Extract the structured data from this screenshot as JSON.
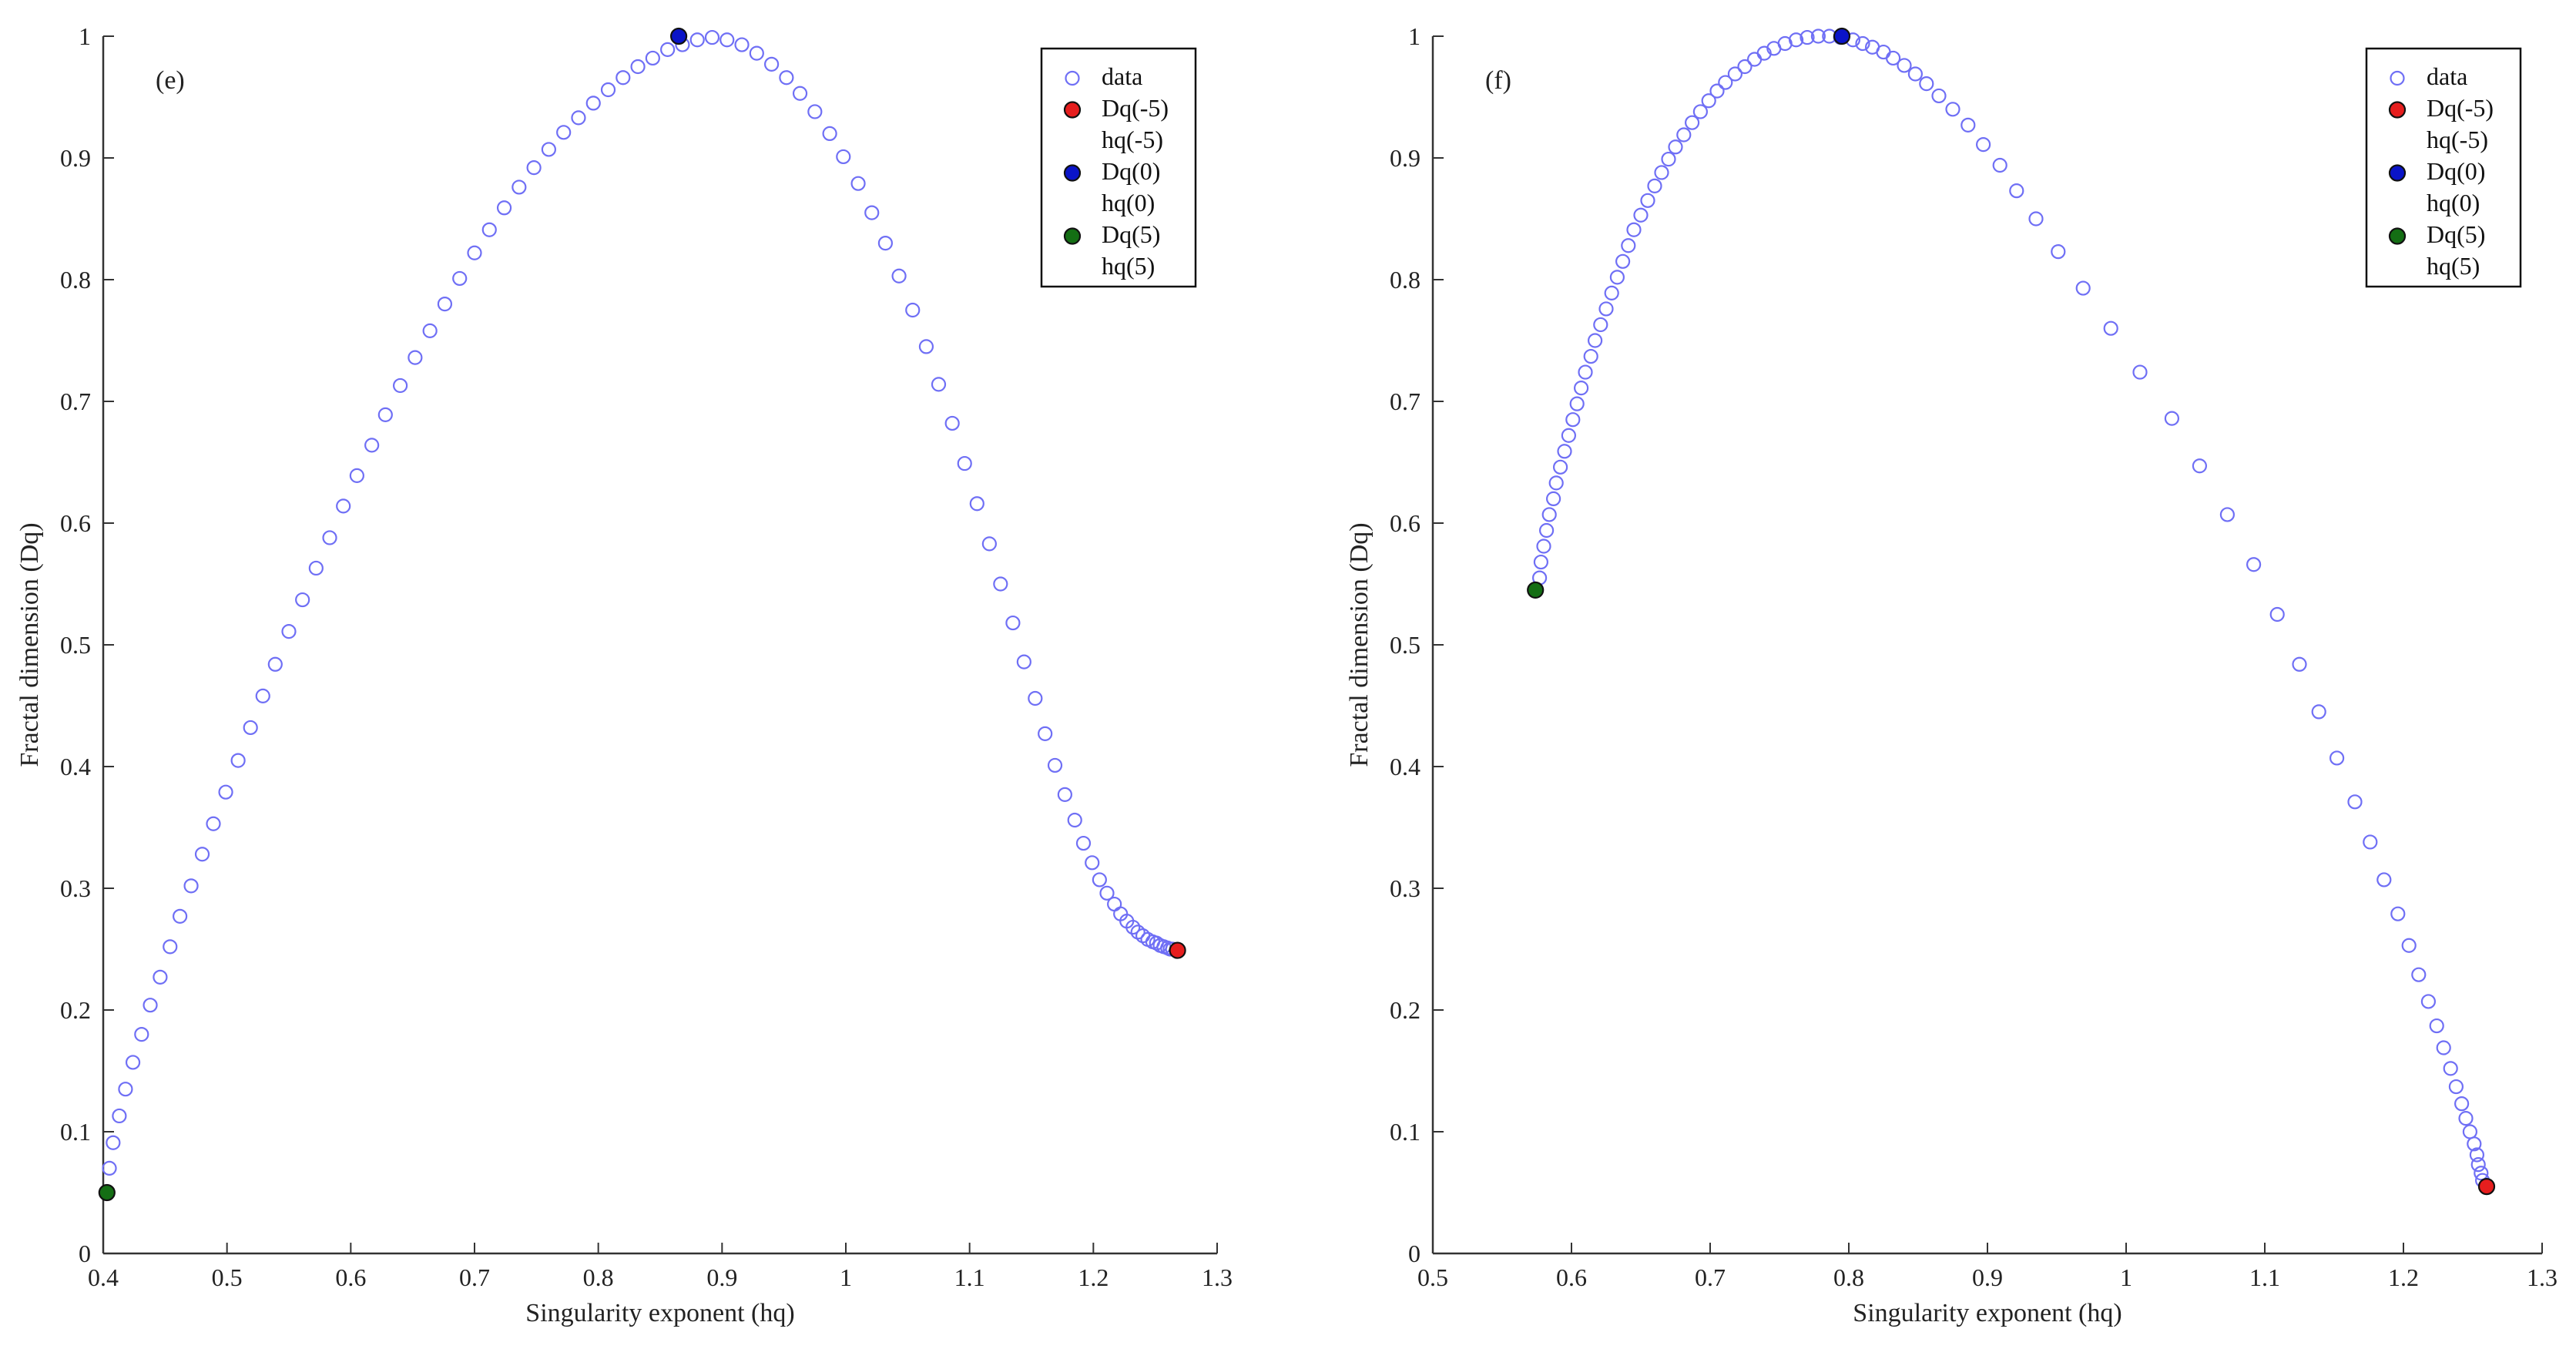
{
  "chart_data": [
    {
      "type": "scatter",
      "panel_label": "(e)",
      "xlabel": "Singularity exponent (hq)",
      "ylabel": "Fractal dimension (Dq)",
      "xlim": [
        0.4,
        1.3
      ],
      "ylim": [
        0,
        1
      ],
      "xticks": [
        "0.4",
        "0.5",
        "0.6",
        "0.7",
        "0.8",
        "0.9",
        "1",
        "1.1",
        "1.2",
        "1.3"
      ],
      "yticks": [
        "0",
        "0.1",
        "0.2",
        "0.3",
        "0.4",
        "0.5",
        "0.6",
        "0.7",
        "0.8",
        "0.9",
        "1"
      ],
      "legend": {
        "position": "top-right",
        "entries": [
          {
            "label_lines": [
              "data"
            ],
            "marker": "open-circle",
            "color": "#6f6ff5"
          },
          {
            "label_lines": [
              "Dq(-5)",
              "hq(-5)"
            ],
            "marker": "filled-circle",
            "color": "#e61e1e"
          },
          {
            "label_lines": [
              "Dq(0)",
              "hq(0)"
            ],
            "marker": "filled-circle",
            "color": "#0a14c8"
          },
          {
            "label_lines": [
              "Dq(5)",
              "hq(5)"
            ],
            "marker": "filled-circle",
            "color": "#146e14"
          }
        ]
      },
      "series": [
        {
          "name": "data",
          "marker": "open-circle",
          "color": "#6f6ff5",
          "x": [
            0.405,
            0.408,
            0.413,
            0.418,
            0.424,
            0.431,
            0.438,
            0.446,
            0.454,
            0.462,
            0.471,
            0.48,
            0.489,
            0.499,
            0.509,
            0.519,
            0.529,
            0.539,
            0.55,
            0.561,
            0.572,
            0.583,
            0.594,
            0.605,
            0.617,
            0.628,
            0.64,
            0.652,
            0.664,
            0.676,
            0.688,
            0.7,
            0.712,
            0.724,
            0.736,
            0.748,
            0.76,
            0.772,
            0.784,
            0.796,
            0.808,
            0.82,
            0.832,
            0.844,
            0.856,
            0.868,
            0.88,
            0.892,
            0.904,
            0.916,
            0.928,
            0.94,
            0.952,
            0.963,
            0.975,
            0.987,
            0.998,
            1.01,
            1.021,
            1.032,
            1.043,
            1.054,
            1.065,
            1.075,
            1.086,
            1.096,
            1.106,
            1.116,
            1.125,
            1.135,
            1.144,
            1.153,
            1.161,
            1.169,
            1.177,
            1.185,
            1.192,
            1.199,
            1.205,
            1.211,
            1.217,
            1.222,
            1.227,
            1.232,
            1.236,
            1.24,
            1.244,
            1.248,
            1.251,
            1.254,
            1.257,
            1.26,
            1.262,
            1.264
          ],
          "y": [
            0.07,
            0.091,
            0.113,
            0.135,
            0.157,
            0.18,
            0.204,
            0.227,
            0.252,
            0.277,
            0.302,
            0.328,
            0.353,
            0.379,
            0.405,
            0.432,
            0.458,
            0.484,
            0.511,
            0.537,
            0.563,
            0.588,
            0.614,
            0.639,
            0.664,
            0.689,
            0.713,
            0.736,
            0.758,
            0.78,
            0.801,
            0.822,
            0.841,
            0.859,
            0.876,
            0.892,
            0.907,
            0.921,
            0.933,
            0.945,
            0.956,
            0.966,
            0.975,
            0.982,
            0.989,
            0.993,
            0.997,
            0.999,
            0.997,
            0.993,
            0.986,
            0.977,
            0.966,
            0.953,
            0.938,
            0.92,
            0.901,
            0.879,
            0.855,
            0.83,
            0.803,
            0.775,
            0.745,
            0.714,
            0.682,
            0.649,
            0.616,
            0.583,
            0.55,
            0.518,
            0.486,
            0.456,
            0.427,
            0.401,
            0.377,
            0.356,
            0.337,
            0.321,
            0.307,
            0.296,
            0.287,
            0.279,
            0.273,
            0.268,
            0.264,
            0.261,
            0.258,
            0.256,
            0.255,
            0.253,
            0.252,
            0.251,
            0.25,
            0.25
          ]
        },
        {
          "name": "Dq(-5) hq(-5)",
          "marker": "filled-circle",
          "color": "#e61e1e",
          "x": [
            1.268
          ],
          "y": [
            0.249
          ]
        },
        {
          "name": "Dq(0) hq(0)",
          "marker": "filled-circle",
          "color": "#0a14c8",
          "x": [
            0.865
          ],
          "y": [
            1.0
          ]
        },
        {
          "name": "Dq(5) hq(5)",
          "marker": "filled-circle",
          "color": "#146e14",
          "x": [
            0.403
          ],
          "y": [
            0.05
          ]
        }
      ]
    },
    {
      "type": "scatter",
      "panel_label": "(f)",
      "xlabel": "Singularity exponent (hq)",
      "ylabel": "Fractal dimension (Dq)",
      "xlim": [
        0.5,
        1.3
      ],
      "ylim": [
        0,
        1
      ],
      "xticks": [
        "0.5",
        "0.6",
        "0.7",
        "0.8",
        "0.9",
        "1",
        "1.1",
        "1.2",
        "1.3"
      ],
      "yticks": [
        "0",
        "0.1",
        "0.2",
        "0.3",
        "0.4",
        "0.5",
        "0.6",
        "0.7",
        "0.8",
        "0.9",
        "1"
      ],
      "legend": {
        "position": "top-right",
        "entries": [
          {
            "label_lines": [
              "data"
            ],
            "marker": "open-circle",
            "color": "#6f6ff5"
          },
          {
            "label_lines": [
              "Dq(-5)",
              "hq(-5)"
            ],
            "marker": "filled-circle",
            "color": "#e61e1e"
          },
          {
            "label_lines": [
              "Dq(0)",
              "hq(0)"
            ],
            "marker": "filled-circle",
            "color": "#0a14c8"
          },
          {
            "label_lines": [
              "Dq(5)",
              "hq(5)"
            ],
            "marker": "filled-circle",
            "color": "#146e14"
          }
        ]
      },
      "series": [
        {
          "name": "data",
          "marker": "open-circle",
          "color": "#6f6ff5",
          "x": [
            0.577,
            0.578,
            0.58,
            0.582,
            0.584,
            0.587,
            0.589,
            0.592,
            0.595,
            0.598,
            0.601,
            0.604,
            0.607,
            0.61,
            0.614,
            0.617,
            0.621,
            0.625,
            0.629,
            0.633,
            0.637,
            0.641,
            0.645,
            0.65,
            0.655,
            0.66,
            0.665,
            0.67,
            0.675,
            0.681,
            0.687,
            0.693,
            0.699,
            0.705,
            0.711,
            0.718,
            0.725,
            0.732,
            0.739,
            0.746,
            0.754,
            0.762,
            0.77,
            0.778,
            0.786,
            0.794,
            0.803,
            0.81,
            0.817,
            0.825,
            0.832,
            0.84,
            0.848,
            0.856,
            0.865,
            0.875,
            0.886,
            0.897,
            0.909,
            0.921,
            0.935,
            0.951,
            0.969,
            0.989,
            1.01,
            1.033,
            1.053,
            1.073,
            1.092,
            1.109,
            1.125,
            1.139,
            1.152,
            1.165,
            1.176,
            1.186,
            1.196,
            1.204,
            1.211,
            1.218,
            1.224,
            1.229,
            1.234,
            1.238,
            1.242,
            1.245,
            1.248,
            1.251,
            1.253,
            1.254,
            1.256,
            1.257
          ],
          "y": [
            0.555,
            0.568,
            0.581,
            0.594,
            0.607,
            0.62,
            0.633,
            0.646,
            0.659,
            0.672,
            0.685,
            0.698,
            0.711,
            0.724,
            0.737,
            0.75,
            0.763,
            0.776,
            0.789,
            0.802,
            0.815,
            0.828,
            0.841,
            0.853,
            0.865,
            0.877,
            0.888,
            0.899,
            0.909,
            0.919,
            0.929,
            0.938,
            0.947,
            0.955,
            0.962,
            0.969,
            0.975,
            0.981,
            0.986,
            0.99,
            0.994,
            0.997,
            0.999,
            1.0,
            1.0,
            0.999,
            0.997,
            0.994,
            0.991,
            0.987,
            0.982,
            0.976,
            0.969,
            0.961,
            0.951,
            0.94,
            0.927,
            0.911,
            0.894,
            0.873,
            0.85,
            0.823,
            0.793,
            0.76,
            0.724,
            0.686,
            0.647,
            0.607,
            0.566,
            0.525,
            0.484,
            0.445,
            0.407,
            0.371,
            0.338,
            0.307,
            0.279,
            0.253,
            0.229,
            0.207,
            0.187,
            0.169,
            0.152,
            0.137,
            0.123,
            0.111,
            0.1,
            0.09,
            0.081,
            0.073,
            0.066,
            0.06
          ]
        },
        {
          "name": "Dq(-5) hq(-5)",
          "marker": "filled-circle",
          "color": "#e61e1e",
          "x": [
            1.26
          ],
          "y": [
            0.055
          ]
        },
        {
          "name": "Dq(0) hq(0)",
          "marker": "filled-circle",
          "color": "#0a14c8",
          "x": [
            0.795
          ],
          "y": [
            1.0
          ]
        },
        {
          "name": "Dq(5) hq(5)",
          "marker": "filled-circle",
          "color": "#146e14",
          "x": [
            0.574
          ],
          "y": [
            0.545
          ]
        }
      ]
    }
  ]
}
